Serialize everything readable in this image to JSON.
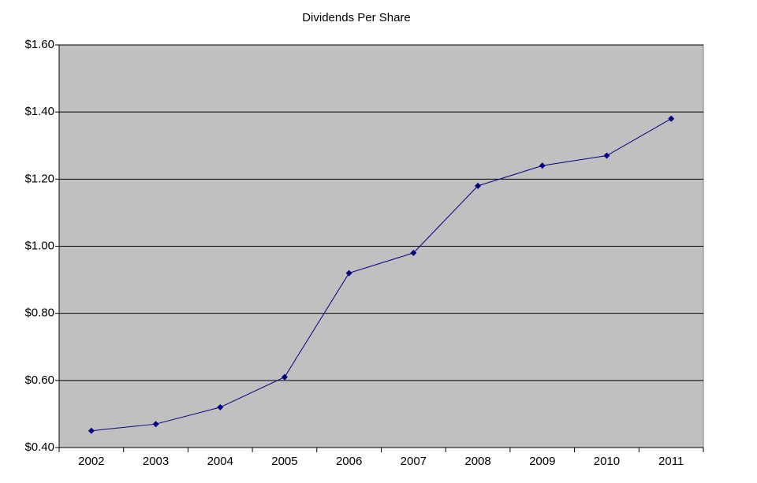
{
  "chart_data": {
    "type": "line",
    "title": "Dividends Per Share",
    "categories": [
      "2002",
      "2003",
      "2004",
      "2005",
      "2006",
      "2007",
      "2008",
      "2009",
      "2010",
      "2011"
    ],
    "values": [
      0.45,
      0.47,
      0.52,
      0.61,
      0.92,
      0.98,
      1.18,
      1.24,
      1.27,
      1.38
    ],
    "color": "#000080",
    "ylim": [
      0.4,
      1.6
    ],
    "yticks": [
      {
        "value": 0.4,
        "label": "$0.40"
      },
      {
        "value": 0.6,
        "label": "$0.60"
      },
      {
        "value": 0.8,
        "label": "$0.80"
      },
      {
        "value": 1.0,
        "label": "$1.00"
      },
      {
        "value": 1.2,
        "label": "$1.20"
      },
      {
        "value": 1.4,
        "label": "$1.40"
      },
      {
        "value": 1.6,
        "label": "$1.60"
      }
    ],
    "grid": true
  }
}
